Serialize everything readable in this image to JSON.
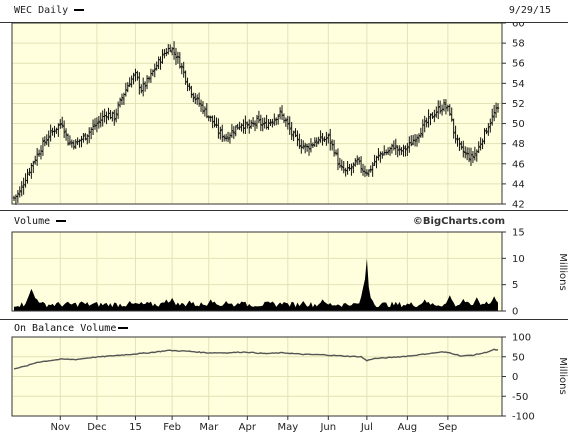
{
  "header": {
    "title": "WEC Daily",
    "date": "9/29/15"
  },
  "brand": "©BigCharts.com",
  "colors": {
    "panel_bg": "#ffffdd",
    "grid": "#e3e3b8",
    "border": "#333333",
    "page_bg": "#ffffff",
    "price_bar": "#111111",
    "volume_fill": "#000000",
    "obv_line": "#555555"
  },
  "chart_data": [
    {
      "type": "bar",
      "name": "price",
      "title": "WEC Daily",
      "ylim": [
        42,
        60
      ],
      "yticks": [
        42,
        44,
        46,
        48,
        50,
        52,
        54,
        56,
        58,
        60
      ],
      "x_index_range": [
        0,
        251
      ],
      "x_tick_labels": [
        "Nov",
        "Dec",
        "15",
        "Feb",
        "Mar",
        "Apr",
        "May",
        "Jun",
        "Jul",
        "Aug",
        "Sep"
      ],
      "x_tick_index": [
        24,
        43,
        63,
        82,
        101,
        121,
        142,
        163,
        183,
        204,
        225
      ],
      "close_keypoints": [
        [
          0,
          42.6
        ],
        [
          3,
          43.2
        ],
        [
          6,
          44.6
        ],
        [
          10,
          46.2
        ],
        [
          14,
          47.6
        ],
        [
          18,
          48.8
        ],
        [
          22,
          49.6
        ],
        [
          25,
          50.1
        ],
        [
          28,
          48.2
        ],
        [
          32,
          48.0
        ],
        [
          36,
          48.6
        ],
        [
          40,
          49.4
        ],
        [
          44,
          50.2
        ],
        [
          48,
          51.0
        ],
        [
          52,
          50.6
        ],
        [
          56,
          52.6
        ],
        [
          60,
          54.2
        ],
        [
          63,
          54.8
        ],
        [
          66,
          53.4
        ],
        [
          70,
          54.4
        ],
        [
          74,
          55.8
        ],
        [
          78,
          57.0
        ],
        [
          81,
          57.6
        ],
        [
          84,
          56.8
        ],
        [
          87,
          55.6
        ],
        [
          90,
          54.0
        ],
        [
          93,
          52.8
        ],
        [
          96,
          52.0
        ],
        [
          100,
          51.0
        ],
        [
          103,
          50.2
        ],
        [
          106,
          49.2
        ],
        [
          110,
          48.6
        ],
        [
          114,
          49.4
        ],
        [
          118,
          50.0
        ],
        [
          122,
          49.6
        ],
        [
          126,
          50.2
        ],
        [
          130,
          49.8
        ],
        [
          134,
          50.4
        ],
        [
          138,
          51.0
        ],
        [
          141,
          50.2
        ],
        [
          144,
          49.0
        ],
        [
          148,
          48.0
        ],
        [
          152,
          47.6
        ],
        [
          156,
          48.2
        ],
        [
          160,
          48.4
        ],
        [
          163,
          48.6
        ],
        [
          166,
          47.4
        ],
        [
          169,
          45.6
        ],
        [
          172,
          45.2
        ],
        [
          175,
          45.6
        ],
        [
          178,
          46.2
        ],
        [
          181,
          45.4
        ],
        [
          184,
          45.2
        ],
        [
          187,
          46.2
        ],
        [
          190,
          47.0
        ],
        [
          194,
          47.2
        ],
        [
          197,
          47.8
        ],
        [
          200,
          47.2
        ],
        [
          204,
          47.6
        ],
        [
          208,
          48.6
        ],
        [
          212,
          49.6
        ],
        [
          216,
          50.6
        ],
        [
          220,
          51.4
        ],
        [
          223,
          51.8
        ],
        [
          226,
          51.2
        ],
        [
          228,
          49.2
        ],
        [
          231,
          47.6
        ],
        [
          234,
          47.0
        ],
        [
          237,
          46.6
        ],
        [
          240,
          47.2
        ],
        [
          243,
          48.6
        ],
        [
          246,
          49.8
        ],
        [
          249,
          51.0
        ],
        [
          251,
          51.4
        ]
      ]
    },
    {
      "type": "area",
      "name": "volume",
      "title": "Volume",
      "ylabel": "Millions",
      "ylim": [
        0,
        15
      ],
      "yticks": [
        0,
        5,
        10,
        15
      ],
      "baseline_millions": 1.2,
      "spikes": [
        [
          8,
          3.2
        ],
        [
          9,
          4.2
        ],
        [
          10,
          3.4
        ],
        [
          12,
          2.2
        ],
        [
          35,
          1.8
        ],
        [
          60,
          1.9
        ],
        [
          79,
          2.2
        ],
        [
          82,
          2.5
        ],
        [
          91,
          2.0
        ],
        [
          102,
          2.2
        ],
        [
          110,
          1.9
        ],
        [
          118,
          1.8
        ],
        [
          134,
          1.8
        ],
        [
          140,
          1.7
        ],
        [
          150,
          1.9
        ],
        [
          160,
          2.2
        ],
        [
          176,
          1.5
        ],
        [
          182,
          6.0
        ],
        [
          183,
          10.0
        ],
        [
          184,
          4.5
        ],
        [
          185,
          2.5
        ],
        [
          213,
          2.2
        ],
        [
          226,
          3.0
        ],
        [
          233,
          2.3
        ],
        [
          240,
          2.6
        ],
        [
          245,
          1.8
        ],
        [
          249,
          2.8
        ]
      ]
    },
    {
      "type": "line",
      "name": "obv",
      "title": "On Balance Volume",
      "ylabel": "Millions",
      "ylim": [
        -100,
        100
      ],
      "yticks": [
        -100,
        -50,
        0,
        50,
        100
      ],
      "keypoints": [
        [
          0,
          20
        ],
        [
          6,
          26
        ],
        [
          12,
          36
        ],
        [
          18,
          40
        ],
        [
          25,
          44
        ],
        [
          32,
          43
        ],
        [
          40,
          48
        ],
        [
          50,
          52
        ],
        [
          60,
          56
        ],
        [
          70,
          60
        ],
        [
          80,
          66
        ],
        [
          90,
          64
        ],
        [
          100,
          60
        ],
        [
          110,
          60
        ],
        [
          120,
          62
        ],
        [
          130,
          58
        ],
        [
          140,
          60
        ],
        [
          150,
          56
        ],
        [
          160,
          55
        ],
        [
          170,
          52
        ],
        [
          180,
          50
        ],
        [
          183,
          40
        ],
        [
          186,
          45
        ],
        [
          195,
          48
        ],
        [
          205,
          52
        ],
        [
          215,
          58
        ],
        [
          222,
          62
        ],
        [
          226,
          60
        ],
        [
          232,
          52
        ],
        [
          238,
          54
        ],
        [
          244,
          60
        ],
        [
          249,
          68
        ],
        [
          251,
          67
        ]
      ]
    }
  ]
}
